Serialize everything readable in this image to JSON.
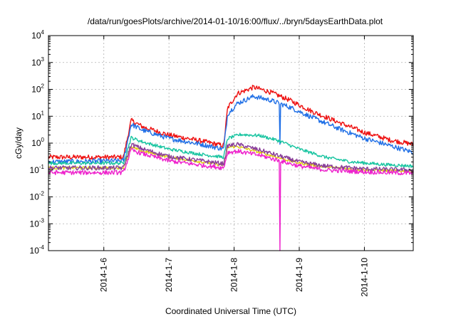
{
  "chart_data": {
    "type": "line",
    "title": "/data/run/goesPlots/archive/2014-01-10/16:00/flux/../bryn/5daysEarthData.plot",
    "xlabel": "Coordinated Universal Time (UTC)",
    "ylabel": "cGy/day",
    "yscale": "log",
    "ylim": [
      0.0001,
      10000
    ],
    "xlim": [
      5.15,
      10.75
    ],
    "grid": true,
    "x_ticks": [
      {
        "value": 6,
        "label": "2014-1-6"
      },
      {
        "value": 7,
        "label": "2014-1-7"
      },
      {
        "value": 8,
        "label": "2014-1-8"
      },
      {
        "value": 9,
        "label": "2014-1-9"
      },
      {
        "value": 10,
        "label": "2014-1-10"
      }
    ],
    "y_ticks": [
      {
        "value": 0.0001,
        "base": "10",
        "exp": "-4"
      },
      {
        "value": 0.001,
        "base": "10",
        "exp": "-3"
      },
      {
        "value": 0.01,
        "base": "10",
        "exp": "-2"
      },
      {
        "value": 0.1,
        "base": "10",
        "exp": "-1"
      },
      {
        "value": 1,
        "base": "10",
        "exp": "0"
      },
      {
        "value": 10,
        "base": "10",
        "exp": "1"
      },
      {
        "value": 100,
        "base": "10",
        "exp": "2"
      },
      {
        "value": 1000,
        "base": "10",
        "exp": "3"
      },
      {
        "value": 10000,
        "base": "10",
        "exp": "4"
      }
    ],
    "series": [
      {
        "color": "#ee1111",
        "points": [
          [
            5.15,
            0.3
          ],
          [
            6.3,
            0.3
          ],
          [
            6.42,
            7
          ],
          [
            6.6,
            4
          ],
          [
            7.0,
            2
          ],
          [
            7.5,
            1.2
          ],
          [
            7.84,
            0.8
          ],
          [
            7.9,
            20
          ],
          [
            8.05,
            70
          ],
          [
            8.3,
            120
          ],
          [
            8.55,
            80
          ],
          [
            8.85,
            40
          ],
          [
            9.2,
            15
          ],
          [
            9.6,
            6
          ],
          [
            10.0,
            2.5
          ],
          [
            10.4,
            1.3
          ],
          [
            10.75,
            0.9
          ]
        ],
        "noise": 0.09,
        "drops": []
      },
      {
        "color": "#1f6fe6",
        "points": [
          [
            5.15,
            0.2
          ],
          [
            6.3,
            0.22
          ],
          [
            6.42,
            5
          ],
          [
            6.6,
            3
          ],
          [
            7.0,
            1.5
          ],
          [
            7.5,
            0.9
          ],
          [
            7.84,
            0.6
          ],
          [
            7.9,
            12
          ],
          [
            8.05,
            30
          ],
          [
            8.3,
            55
          ],
          [
            8.55,
            40
          ],
          [
            8.85,
            22
          ],
          [
            9.2,
            9
          ],
          [
            9.6,
            3.5
          ],
          [
            10.0,
            1.5
          ],
          [
            10.4,
            0.8
          ],
          [
            10.75,
            0.45
          ]
        ],
        "noise": 0.09,
        "drops": [
          [
            8.7,
            0.9
          ]
        ]
      },
      {
        "color": "#17c4a0",
        "points": [
          [
            5.15,
            0.18
          ],
          [
            6.3,
            0.18
          ],
          [
            6.42,
            1.6
          ],
          [
            6.6,
            1.1
          ],
          [
            7.0,
            0.6
          ],
          [
            7.5,
            0.38
          ],
          [
            7.84,
            0.3
          ],
          [
            7.9,
            1.5
          ],
          [
            8.1,
            2.1
          ],
          [
            8.4,
            1.9
          ],
          [
            8.7,
            1.2
          ],
          [
            9.0,
            0.6
          ],
          [
            9.4,
            0.3
          ],
          [
            9.8,
            0.2
          ],
          [
            10.3,
            0.16
          ],
          [
            10.75,
            0.14
          ]
        ],
        "noise": 0.06,
        "drops": []
      },
      {
        "color": "#e0d010",
        "points": [
          [
            5.15,
            0.12
          ],
          [
            6.3,
            0.12
          ],
          [
            6.42,
            0.7
          ],
          [
            6.6,
            0.5
          ],
          [
            7.0,
            0.3
          ],
          [
            7.5,
            0.2
          ],
          [
            7.84,
            0.15
          ],
          [
            7.9,
            0.7
          ],
          [
            8.05,
            0.75
          ],
          [
            8.4,
            0.45
          ],
          [
            8.7,
            0.28
          ],
          [
            9.0,
            0.18
          ],
          [
            9.4,
            0.13
          ],
          [
            10.0,
            0.1
          ],
          [
            10.75,
            0.09
          ]
        ],
        "noise": 0.05,
        "drops": []
      },
      {
        "color": "#8a3e9a",
        "points": [
          [
            5.15,
            0.12
          ],
          [
            6.3,
            0.12
          ],
          [
            6.42,
            0.9
          ],
          [
            6.6,
            0.6
          ],
          [
            7.0,
            0.32
          ],
          [
            7.5,
            0.22
          ],
          [
            7.84,
            0.17
          ],
          [
            7.9,
            0.8
          ],
          [
            8.05,
            0.9
          ],
          [
            8.4,
            0.55
          ],
          [
            8.7,
            0.33
          ],
          [
            9.0,
            0.2
          ],
          [
            9.4,
            0.14
          ],
          [
            10.0,
            0.11
          ],
          [
            10.75,
            0.1
          ]
        ],
        "noise": 0.08,
        "drops": []
      },
      {
        "color": "#ee22cc",
        "points": [
          [
            5.15,
            0.08
          ],
          [
            6.3,
            0.08
          ],
          [
            6.42,
            0.55
          ],
          [
            6.6,
            0.4
          ],
          [
            7.0,
            0.22
          ],
          [
            7.5,
            0.15
          ],
          [
            7.84,
            0.12
          ],
          [
            7.9,
            0.45
          ],
          [
            8.05,
            0.5
          ],
          [
            8.4,
            0.35
          ],
          [
            8.7,
            0.22
          ],
          [
            9.0,
            0.14
          ],
          [
            9.4,
            0.1
          ],
          [
            10.0,
            0.085
          ],
          [
            10.75,
            0.075
          ]
        ],
        "noise": 0.08,
        "drops": [
          [
            8.7,
            9e-05
          ]
        ]
      }
    ]
  }
}
